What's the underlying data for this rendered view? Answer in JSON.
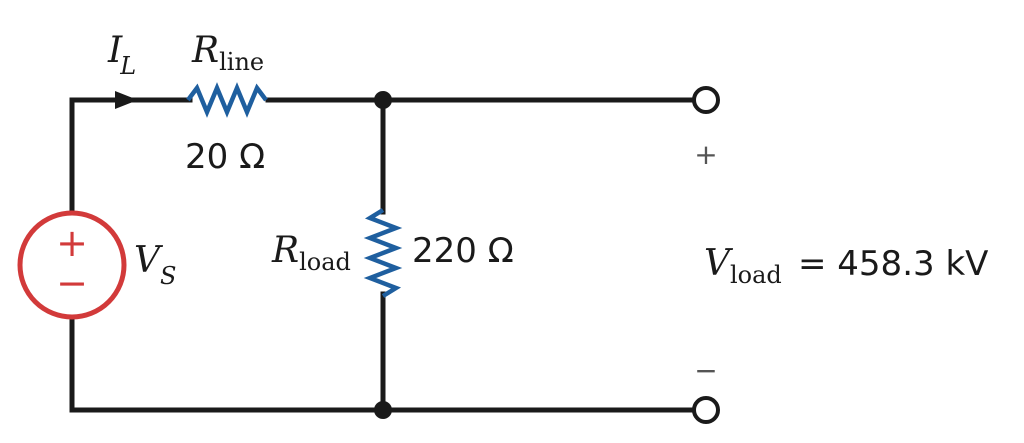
{
  "current": {
    "symbol": "I",
    "subscript": "L"
  },
  "line_resistor": {
    "symbol": "R",
    "subscript": "line",
    "value": "20 Ω"
  },
  "load_resistor": {
    "symbol": "R",
    "subscript": "load",
    "value": "220 Ω"
  },
  "source": {
    "symbol": "V",
    "subscript": "S",
    "plus": "+",
    "minus": "−"
  },
  "output": {
    "plus": "+",
    "minus": "−",
    "symbol": "V",
    "subscript": "load",
    "equals_value": "= 458.3 kV"
  },
  "colors": {
    "wire": "#1a1a1a",
    "resistor": "#1f5f9f",
    "source": "#d23a3a"
  }
}
